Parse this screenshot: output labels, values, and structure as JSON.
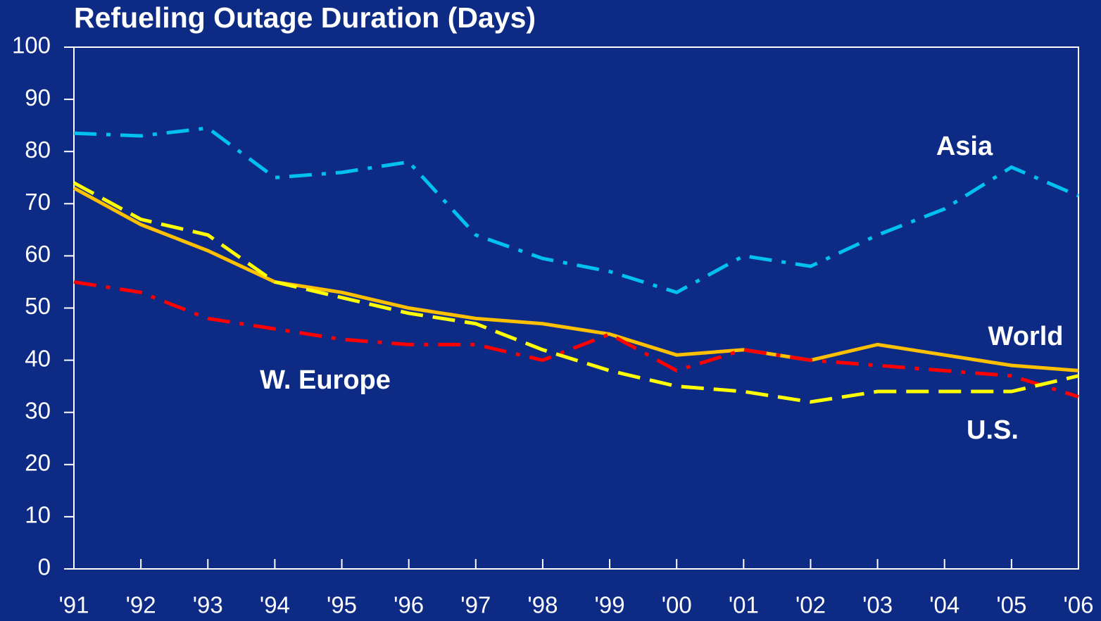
{
  "chart_data": {
    "type": "line",
    "title": "Refueling Outage Duration (Days)",
    "categories": [
      "'91",
      "'92",
      "'93",
      "'94",
      "'95",
      "'96",
      "'97",
      "'98",
      "'99",
      "'00",
      "'01",
      "'02",
      "'03",
      "'04",
      "'05",
      "'06"
    ],
    "ylim": [
      0,
      100
    ],
    "yticks": [
      0,
      10,
      20,
      30,
      40,
      50,
      60,
      70,
      80,
      90,
      100
    ],
    "series": [
      {
        "name": "Asia",
        "color": "#00c0f0",
        "style": "dashdot",
        "values": [
          83.5,
          83,
          84.5,
          75,
          76,
          78,
          64,
          59.5,
          57,
          53,
          60,
          58,
          64,
          69,
          77,
          71.5
        ]
      },
      {
        "name": "World",
        "color": "#ffc000",
        "style": "solid",
        "values": [
          73,
          66,
          61,
          55,
          53,
          50,
          48,
          47,
          45,
          41,
          42,
          40,
          43,
          41,
          39,
          38
        ]
      },
      {
        "name": "W. Europe",
        "color": "#ff0000",
        "style": "dashdot",
        "values": [
          55,
          53,
          48,
          46,
          44,
          43,
          43,
          40,
          45,
          38,
          42,
          40,
          39,
          38,
          37,
          33
        ]
      },
      {
        "name": "U.S.",
        "color": "#ffff00",
        "style": "dashed",
        "values": [
          74,
          67,
          64,
          55,
          52,
          49,
          47,
          42,
          38,
          35,
          34,
          32,
          34,
          34,
          34,
          37
        ]
      }
    ]
  }
}
